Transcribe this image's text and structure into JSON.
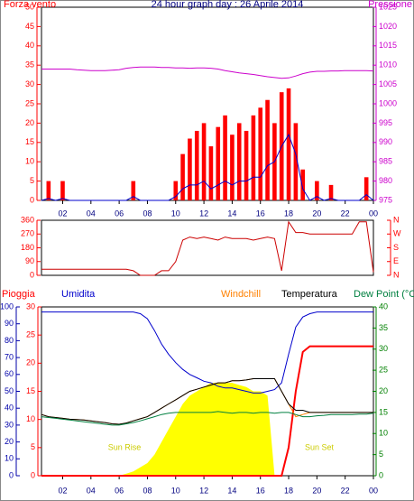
{
  "chart_data": [
    {
      "type": "bar",
      "title": "24 hour graph day : 26 Aprile 2014",
      "y_label": "Forza vento",
      "y2_label": "Pressione",
      "y_color": "#ff0000",
      "y2_color": "#cc00cc",
      "x_color": "#000080",
      "x": [
        0.5,
        1,
        1.5,
        2,
        2.5,
        3,
        3.5,
        4,
        4.5,
        5,
        5.5,
        6,
        6.5,
        7,
        7.5,
        8,
        8.5,
        9,
        9.5,
        10,
        10.5,
        11,
        11.5,
        12,
        12.5,
        13,
        13.5,
        14,
        14.5,
        15,
        15.5,
        16,
        16.5,
        17,
        17.5,
        18,
        18.5,
        19,
        19.5,
        20,
        20.5,
        21,
        21.5,
        22,
        22.5,
        23,
        23.5,
        24
      ],
      "xlim": [
        0.5,
        24
      ],
      "xticks": [
        {
          "value": 2,
          "label": "02"
        },
        {
          "value": 4,
          "label": "04"
        },
        {
          "value": 6,
          "label": "06"
        },
        {
          "value": 8,
          "label": "08"
        },
        10,
        12,
        14,
        16,
        18,
        20,
        22,
        {
          "value": 24,
          "label": "00"
        }
      ],
      "ylim": [
        0,
        50
      ],
      "yticks": [
        0,
        5,
        10,
        15,
        20,
        25,
        30,
        35,
        40,
        45,
        50
      ],
      "y2lim": [
        975,
        1025
      ],
      "y2ticks": [
        975,
        980,
        985,
        990,
        995,
        1000,
        1005,
        1010,
        1015,
        1020,
        1025
      ],
      "series": [
        {
          "mark": "bar",
          "axis": "y",
          "color": "#ff0000",
          "values": [
            0,
            5,
            0,
            5,
            0,
            0,
            0,
            0,
            0,
            0,
            0,
            0,
            0,
            5,
            0,
            0,
            0,
            0,
            0,
            5,
            12,
            16,
            18,
            20,
            14,
            19,
            22,
            17,
            20,
            18,
            22,
            24,
            26,
            20,
            28,
            29,
            20,
            8,
            0,
            5,
            0,
            4,
            0,
            0,
            0,
            0,
            6,
            0
          ]
        },
        {
          "mark": "line",
          "axis": "y",
          "color": "#0000cc",
          "values": [
            0,
            0.5,
            0,
            0.5,
            0,
            0,
            0,
            0,
            0,
            0,
            0,
            0,
            0,
            1,
            0,
            0,
            0,
            0,
            0,
            1,
            3,
            4,
            4,
            5,
            3,
            4,
            5,
            4,
            5,
            5,
            6,
            6,
            9,
            10,
            14,
            17,
            12,
            3,
            0,
            1,
            0,
            0.5,
            0,
            0,
            0,
            0,
            1.5,
            0
          ]
        },
        {
          "mark": "line",
          "axis": "y2",
          "color": "#cc00cc",
          "values": [
            1009,
            1009,
            1009,
            1009,
            1009,
            1008.8,
            1008.7,
            1008.6,
            1008.6,
            1008.6,
            1008.7,
            1008.8,
            1009.2,
            1009.4,
            1009.5,
            1009.5,
            1009.5,
            1009.4,
            1009.4,
            1009.3,
            1009.3,
            1009.2,
            1009.3,
            1009.3,
            1009.2,
            1009,
            1008.6,
            1008.3,
            1008,
            1007.8,
            1007.6,
            1007.3,
            1007,
            1006.8,
            1006.6,
            1006.7,
            1007.2,
            1007.8,
            1008.2,
            1008.4,
            1008.4,
            1008.5,
            1008.5,
            1008.6,
            1008.6,
            1008.6,
            1008.6,
            1008.5
          ]
        }
      ]
    },
    {
      "type": "line",
      "y_color": "#ff0000",
      "y2_color": "#ff0000",
      "x": [
        0.5,
        1,
        1.5,
        2,
        2.5,
        3,
        3.5,
        4,
        4.5,
        5,
        5.5,
        6,
        6.5,
        7,
        7.5,
        8,
        8.5,
        9,
        9.5,
        10,
        10.5,
        11,
        11.5,
        12,
        12.5,
        13,
        13.5,
        14,
        14.5,
        15,
        15.5,
        16,
        16.5,
        17,
        17.5,
        18,
        18.5,
        19,
        19.5,
        20,
        20.5,
        21,
        21.5,
        22,
        22.5,
        23,
        23.5,
        24
      ],
      "xlim": [
        0.5,
        24
      ],
      "ylim": [
        0,
        360
      ],
      "yticks": [
        0,
        90,
        180,
        270,
        360
      ],
      "y2lim": [
        0,
        360
      ],
      "y2ticks": [
        {
          "value": 360,
          "label": "N"
        },
        {
          "value": 270,
          "label": "W"
        },
        {
          "value": 180,
          "label": "S"
        },
        {
          "value": 90,
          "label": "E"
        },
        {
          "value": 0,
          "label": "N"
        }
      ],
      "series": [
        {
          "mark": "line",
          "axis": "y",
          "color": "#cc0000",
          "values": [
            40,
            40,
            40,
            40,
            40,
            40,
            40,
            40,
            40,
            40,
            40,
            40,
            40,
            30,
            0,
            0,
            0,
            30,
            30,
            90,
            230,
            250,
            240,
            250,
            240,
            230,
            250,
            240,
            240,
            240,
            230,
            240,
            250,
            240,
            30,
            350,
            280,
            280,
            270,
            270,
            270,
            270,
            270,
            270,
            270,
            350,
            350,
            20
          ]
        }
      ]
    },
    {
      "type": "line",
      "annotations": [
        "Sun Rise",
        "Sun Set"
      ],
      "y_color": "#ff0000",
      "y2_color": "#008000",
      "y3_color": "#0000aa",
      "x_color": "#000080",
      "x": [
        0.5,
        1,
        1.5,
        2,
        2.5,
        3,
        3.5,
        4,
        4.5,
        5,
        5.5,
        6,
        6.5,
        7,
        7.5,
        8,
        8.5,
        9,
        9.5,
        10,
        10.5,
        11,
        11.5,
        12,
        12.5,
        13,
        13.5,
        14,
        14.5,
        15,
        15.5,
        16,
        16.5,
        17,
        17.5,
        18,
        18.5,
        19,
        19.5,
        20,
        20.5,
        21,
        21.5,
        22,
        22.5,
        23,
        23.5,
        24
      ],
      "xlim": [
        0.5,
        24
      ],
      "xticks": [
        {
          "value": 2,
          "label": "02"
        },
        {
          "value": 4,
          "label": "04"
        },
        {
          "value": 6,
          "label": "06"
        },
        {
          "value": 8,
          "label": "08"
        },
        10,
        12,
        14,
        16,
        18,
        20,
        22,
        {
          "value": 24,
          "label": "00"
        }
      ],
      "ylim": [
        0,
        30
      ],
      "yticks": [
        0,
        5,
        10,
        15,
        20,
        25,
        30
      ],
      "y2lim": [
        0,
        40
      ],
      "y2ticks": [
        0,
        5,
        10,
        15,
        20,
        25,
        30,
        35,
        40
      ],
      "y3lim": [
        0,
        100
      ],
      "y3ticks": [
        0,
        10,
        20,
        30,
        40,
        50,
        60,
        70,
        80,
        90,
        100
      ],
      "series": [
        {
          "mark": "area",
          "axis": "y2",
          "color": "#ffff00",
          "values": [
            0,
            0,
            0,
            0,
            0,
            0,
            0,
            0,
            0,
            0,
            0,
            0,
            0.5,
            1,
            2,
            3,
            5,
            8,
            11,
            14,
            17,
            19,
            20,
            21,
            22,
            22,
            22,
            22,
            21.5,
            21,
            20,
            20,
            19,
            0,
            0,
            0,
            0,
            0,
            0,
            0,
            0,
            0,
            0,
            0,
            0,
            0,
            0,
            0
          ]
        },
        {
          "name": "Pioggia",
          "mark": "line",
          "axis": "y",
          "color": "#ff0000",
          "values": [
            0,
            0,
            0,
            0,
            0,
            0,
            0,
            0,
            0,
            0,
            0,
            0,
            0,
            0,
            0,
            0,
            0,
            0,
            0,
            0,
            0,
            0,
            0,
            0,
            0,
            0,
            0,
            0,
            0,
            0,
            0,
            0,
            0,
            0,
            0,
            5,
            15,
            22,
            23,
            23,
            23,
            23,
            23,
            23,
            23,
            23,
            23,
            23
          ]
        },
        {
          "name": "Umidita",
          "mark": "line",
          "axis": "y3",
          "color": "#0000cc",
          "values": [
            97,
            97,
            97,
            97,
            97,
            97,
            97,
            97,
            97,
            97,
            97,
            97,
            97,
            97,
            96,
            93,
            86,
            78,
            72,
            67,
            63,
            60,
            58,
            56,
            55,
            53,
            52,
            52,
            51,
            50,
            49,
            49,
            50,
            51,
            55,
            72,
            88,
            94,
            96,
            97,
            97,
            97,
            97,
            97,
            97,
            97,
            97,
            97
          ]
        },
        {
          "name": "Windchill",
          "mark": "line",
          "axis": "y2",
          "color": "#ff8000",
          "values": [
            14.5,
            14,
            13.8,
            13.6,
            13.4,
            13.3,
            13.2,
            13,
            12.8,
            12.6,
            12.3,
            12.2,
            12.5,
            13,
            13.5,
            14,
            15,
            16,
            17,
            18,
            19,
            20,
            20.5,
            21,
            21.5,
            22,
            22,
            22.5,
            22.5,
            22.7,
            23,
            23,
            23,
            23,
            20,
            17,
            14,
            14.5,
            15,
            15,
            15,
            15,
            15,
            15,
            15,
            15,
            15,
            15
          ]
        },
        {
          "name": "Temperatura",
          "mark": "line",
          "axis": "y2",
          "color": "#000000",
          "values": [
            14.5,
            14,
            13.8,
            13.6,
            13.4,
            13.3,
            13.2,
            13,
            12.8,
            12.6,
            12.3,
            12.2,
            12.5,
            13,
            13.5,
            14,
            15,
            16,
            17,
            18,
            19,
            20,
            20.5,
            21,
            21.5,
            22,
            22,
            22.5,
            22.5,
            22.7,
            23,
            23,
            23,
            23,
            20,
            17,
            15.5,
            15.5,
            15,
            15,
            15,
            15,
            15,
            15,
            15,
            15,
            15,
            15
          ]
        },
        {
          "name": "Dew Point (°C",
          "mark": "line",
          "axis": "y2",
          "color": "#008040",
          "values": [
            14,
            13.8,
            13.6,
            13.4,
            13.2,
            13,
            12.8,
            12.6,
            12.4,
            12.2,
            12,
            12,
            12.3,
            12.6,
            13,
            13.5,
            14,
            14.5,
            14.8,
            15,
            15,
            15,
            15,
            15,
            15,
            15.2,
            15,
            14.8,
            15,
            15,
            14.8,
            15,
            15,
            14.8,
            15,
            15,
            14.5,
            14,
            14,
            14.2,
            14.3,
            14.5,
            14.5,
            14.5,
            14.5,
            14.6,
            14.6,
            14.8
          ]
        }
      ]
    }
  ]
}
